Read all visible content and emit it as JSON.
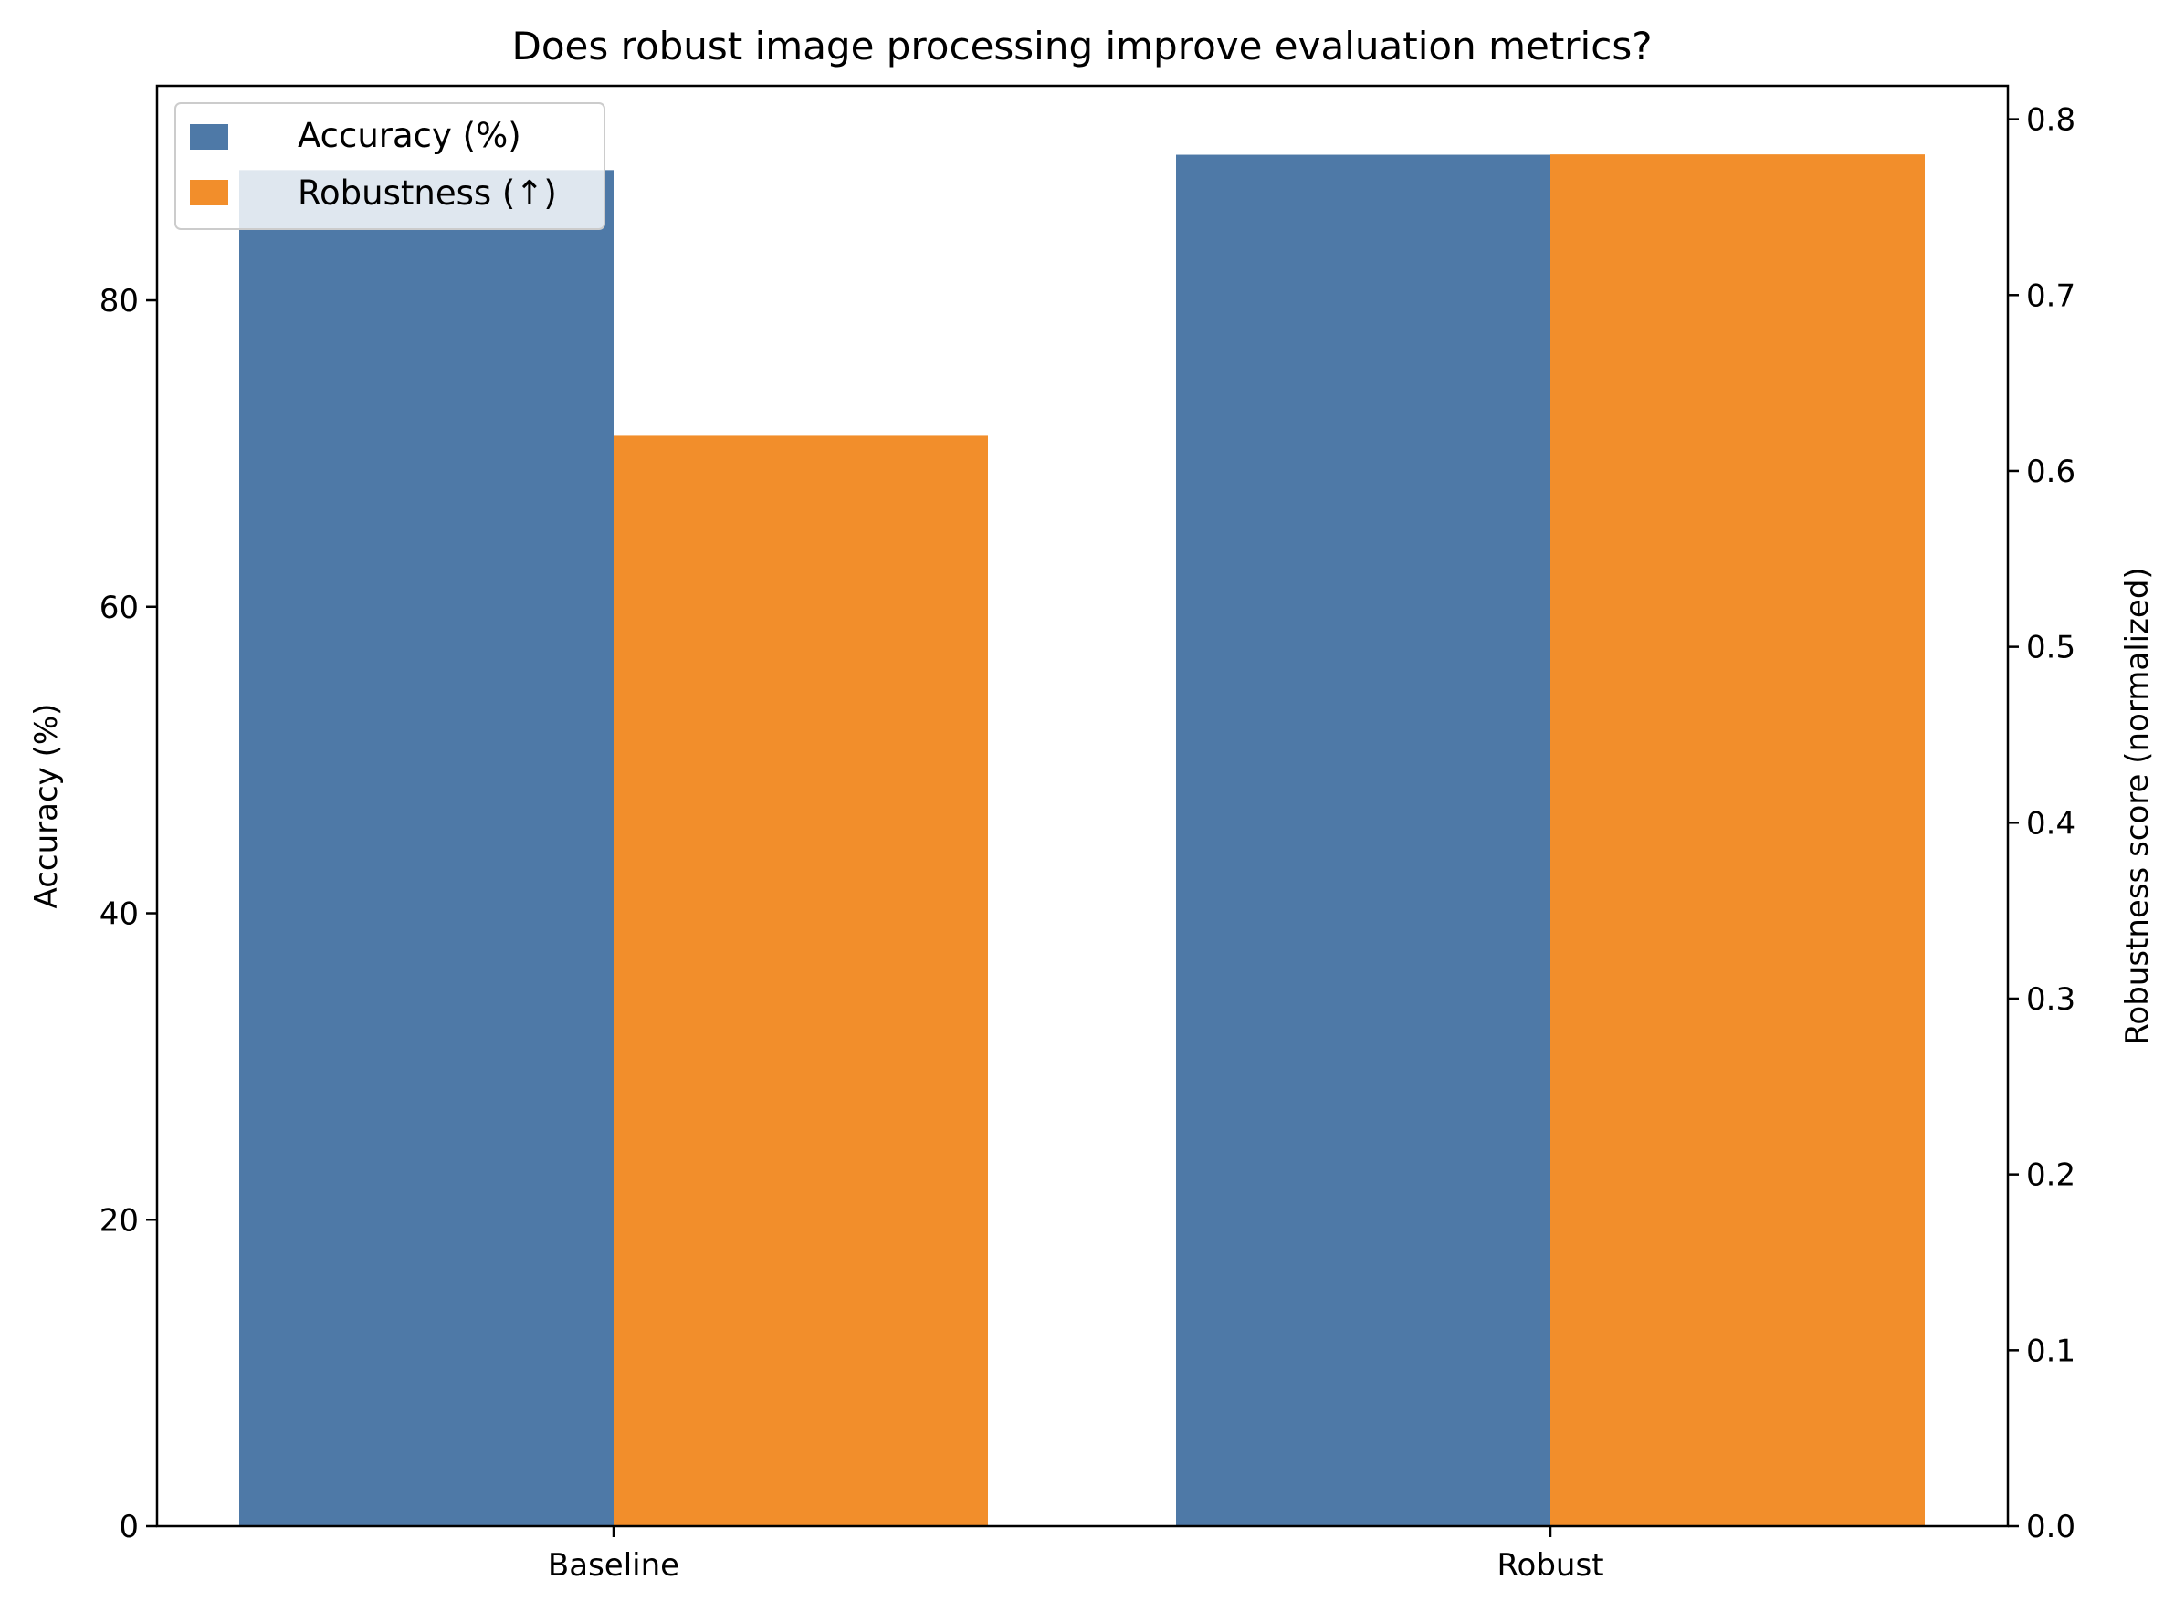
{
  "chart_data": {
    "type": "bar",
    "title": "Does robust image processing improve evaluation metrics?",
    "categories": [
      "Baseline",
      "Robust"
    ],
    "series": [
      {
        "name": "Accuracy (%)",
        "axis": "left",
        "values": [
          88.5,
          89.5
        ],
        "color": "#4e79a7"
      },
      {
        "name": "Robustness (↑)",
        "axis": "right",
        "values": [
          0.62,
          0.78
        ],
        "color": "#f28e2b"
      }
    ],
    "y_left": {
      "label": "Accuracy (%)",
      "ylim": [
        0,
        94
      ],
      "ticks": [
        0,
        20,
        40,
        60,
        80
      ]
    },
    "y_right": {
      "label": "Robustness score (normalized)",
      "ylim": [
        0,
        0.819
      ],
      "ticks": [
        0.0,
        0.1,
        0.2,
        0.3,
        0.4,
        0.5,
        0.6,
        0.7,
        0.8
      ]
    },
    "grid": false,
    "legend_position": "top-left"
  }
}
